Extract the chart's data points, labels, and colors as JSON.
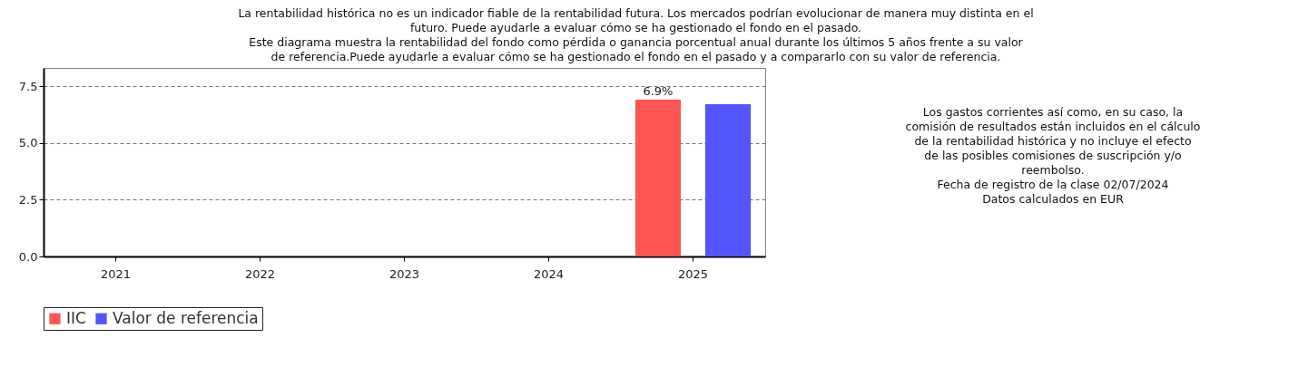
{
  "chart_data": {
    "type": "bar",
    "title": "La rentabilidad histórica no es un indicador fiable de la rentabilidad futura. Los mercados podrían evolucionar de manera muy distinta en el futuro. Puede ayudarle a evaluar cómo se ha gestionado el fondo en el pasado.",
    "subtitle": "Este diagrama muestra la rentabilidad del fondo como pérdida o ganancia porcentual anual durante los últimos 5 años frente a su valor de referencia.Puede ayudarle a evaluar cómo se ha gestionado el fondo en el pasado y a compararlo con su valor de referencia.",
    "categories": [
      "2021",
      "2022",
      "2023",
      "2024",
      "2025"
    ],
    "series": [
      {
        "name": "IIC",
        "color": "#ff5555",
        "values": [
          null,
          null,
          null,
          null,
          6.9
        ],
        "value_labels": [
          null,
          null,
          null,
          null,
          "6.9%"
        ]
      },
      {
        "name": "Valor de referencia",
        "color": "#5555ff",
        "values": [
          null,
          null,
          null,
          null,
          6.7
        ]
      }
    ],
    "ylim": [
      0,
      8.3
    ],
    "yticks": [
      {
        "value": 0,
        "label": "0.0"
      },
      {
        "value": 2.5,
        "label": "2.5"
      },
      {
        "value": 5,
        "label": "5.0"
      },
      {
        "value": 7.5,
        "label": "7.5"
      }
    ],
    "grid": "y",
    "legend": "bottom",
    "annotations": [
      "Los gastos corrientes así como, en su caso, la comisión de resultados están incluidos en el cálculo de la rentabilidad histórica y no incluye el efecto de las posibles comisiones de suscripción y/o reembolso.",
      "Fecha de registro de la clase 02/07/2024",
      "Datos calculados en EUR"
    ]
  }
}
